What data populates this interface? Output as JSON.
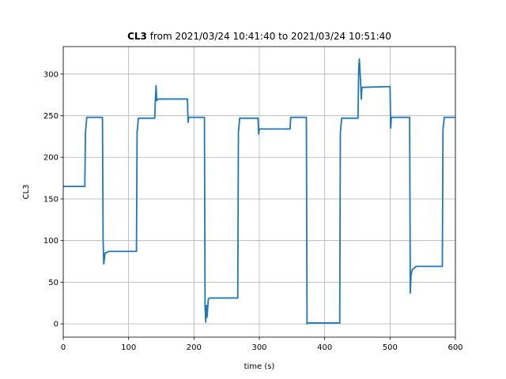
{
  "chart_data": {
    "type": "line",
    "title": [
      "CL3",
      "from 2021/03/24 10:41:40 to 2021/03/24 10:51:40"
    ],
    "xlabel": "time (s)",
    "ylabel": "CL3",
    "xlim": [
      0,
      600
    ],
    "ylim": [
      -16,
      333
    ],
    "xticks": [
      0,
      100,
      200,
      300,
      400,
      500,
      600
    ],
    "yticks": [
      0,
      50,
      100,
      150,
      200,
      250,
      300
    ],
    "grid": true,
    "series": [
      {
        "name": "CL3",
        "color": "#1f77b4",
        "x": [
          0,
          33,
          34,
          36,
          60,
          61,
          62,
          64,
          70,
          112,
          113,
          115,
          140,
          141,
          142,
          143,
          145,
          190,
          191,
          192,
          216,
          217,
          218,
          219,
          220,
          222,
          225,
          267,
          268,
          270,
          298,
          299,
          300,
          347,
          348,
          372,
          373,
          375,
          423,
          424,
          426,
          451,
          452,
          453,
          455,
          456,
          457,
          500,
          501,
          502,
          530,
          531,
          532,
          534,
          540,
          580,
          581,
          583,
          600
        ],
        "values": [
          165,
          165,
          230,
          248,
          248,
          100,
          72,
          85,
          87,
          87,
          230,
          247,
          247,
          270,
          286,
          268,
          270,
          270,
          242,
          248,
          248,
          20,
          2,
          22,
          8,
          30,
          31,
          31,
          230,
          247,
          247,
          228,
          234,
          234,
          248,
          248,
          0,
          1,
          1,
          230,
          247,
          247,
          305,
          318,
          290,
          270,
          284,
          285,
          235,
          248,
          248,
          37,
          58,
          65,
          69,
          69,
          233,
          248,
          248
        ]
      }
    ]
  }
}
